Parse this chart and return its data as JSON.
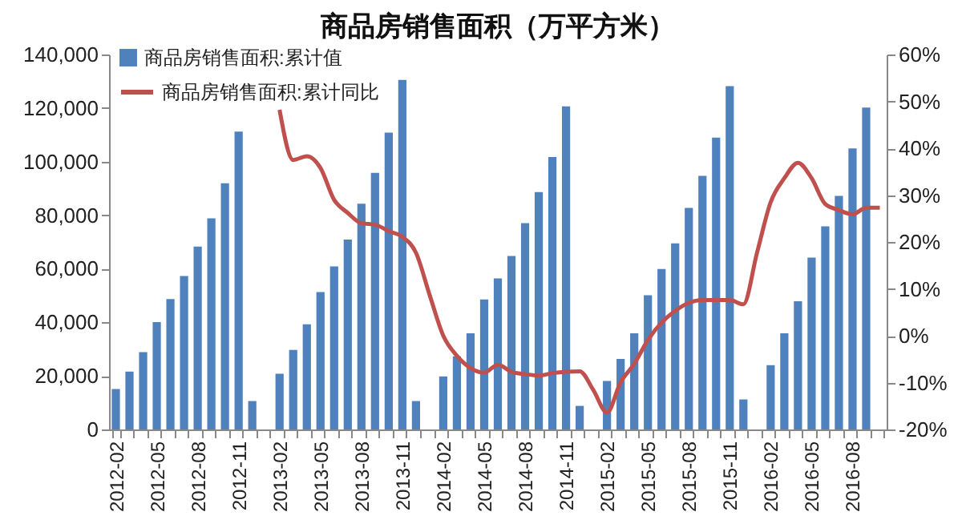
{
  "chart_data": {
    "type": "bar",
    "title": "商品房销售面积（万平方米）",
    "categories": [
      "2012-02",
      null,
      null,
      "2012-05",
      null,
      null,
      "2012-08",
      null,
      null,
      "2012-11",
      null,
      null,
      "2013-02",
      null,
      null,
      "2013-05",
      null,
      null,
      "2013-08",
      null,
      null,
      "2013-11",
      null,
      null,
      "2014-02",
      null,
      null,
      "2014-05",
      null,
      null,
      "2014-08",
      null,
      null,
      "2014-11",
      null,
      null,
      "2015-02",
      null,
      null,
      "2015-05",
      null,
      null,
      "2015-08",
      null,
      null,
      "2015-11",
      null,
      null,
      "2016-02",
      null,
      null,
      "2016-05",
      null,
      null,
      "2016-08",
      null,
      null
    ],
    "series": [
      {
        "name": "商品房销售面积:累计值",
        "color": "#4f81bd",
        "values": [
          15100,
          21600,
          28900,
          40100,
          48700,
          57300,
          68300,
          78800,
          91900,
          111200,
          10600,
          null,
          20800,
          29700,
          39300,
          51300,
          60900,
          70900,
          84300,
          95800,
          110800,
          130500,
          10600,
          null,
          19800,
          27300,
          35900,
          48500,
          56400,
          64800,
          77000,
          88600,
          101700,
          120600,
          8800,
          null,
          18100,
          26300,
          35900,
          50100,
          59900,
          69500,
          82700,
          94700,
          109000,
          128200,
          11200,
          null,
          24000,
          35900,
          47900,
          64200,
          75800,
          87200,
          104900,
          120200,
          null
        ]
      },
      {
        "name": "商品房销售面积:累计同比",
        "type": "line",
        "axis": "y2",
        "color": "#c0504d",
        "values": [
          null,
          null,
          null,
          null,
          null,
          null,
          null,
          null,
          null,
          null,
          null,
          null,
          48.2,
          37.5,
          38.3,
          35.8,
          29.0,
          26.2,
          24.0,
          23.7,
          22.3,
          21.1,
          17.7,
          8.7,
          0.0,
          -4.3,
          -6.9,
          -7.9,
          -6.2,
          -7.7,
          -8.2,
          -8.5,
          -8.0,
          -7.7,
          -7.6,
          -11.6,
          -16.4,
          -9.9,
          -6.0,
          -0.9,
          2.8,
          5.3,
          7.0,
          7.6,
          7.6,
          7.6,
          6.7,
          17.7,
          28.5,
          33.6,
          36.9,
          33.6,
          28.1,
          26.8,
          25.9,
          27.3,
          27.3
        ]
      }
    ],
    "ylim": [
      0,
      140000
    ],
    "yticks": [
      {
        "value": 0,
        "label": "0"
      },
      {
        "value": 20000,
        "label": "20,000"
      },
      {
        "value": 40000,
        "label": "40,000"
      },
      {
        "value": 60000,
        "label": "60,000"
      },
      {
        "value": 80000,
        "label": "80,000"
      },
      {
        "value": 100000,
        "label": "100,000"
      },
      {
        "value": 120000,
        "label": "120,000"
      },
      {
        "value": 140000,
        "label": "140,000"
      }
    ],
    "y2lim": [
      -20,
      60
    ],
    "y2ticks": [
      {
        "value": -20,
        "label": "-20%"
      },
      {
        "value": -10,
        "label": "-10%"
      },
      {
        "value": 0,
        "label": "0%"
      },
      {
        "value": 10,
        "label": "10%"
      },
      {
        "value": 20,
        "label": "20%"
      },
      {
        "value": 30,
        "label": "30%"
      },
      {
        "value": 40,
        "label": "40%"
      },
      {
        "value": 50,
        "label": "50%"
      },
      {
        "value": 60,
        "label": "60%"
      }
    ],
    "grid": false,
    "legend": "top left"
  }
}
